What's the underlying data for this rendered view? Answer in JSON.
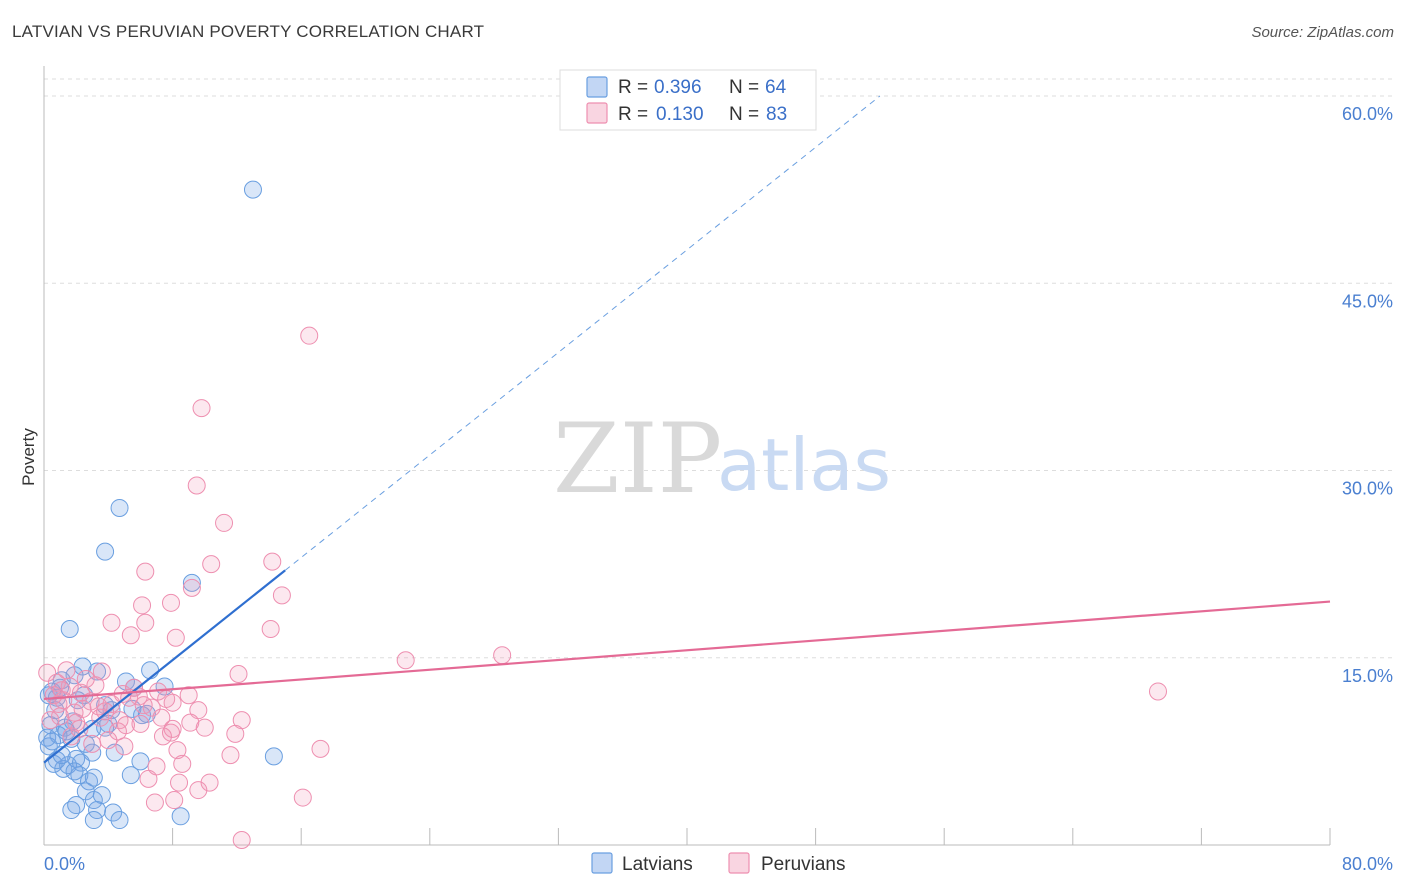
{
  "title": "LATVIAN VS PERUVIAN POVERTY CORRELATION CHART",
  "source": "Source: ZipAtlas.com",
  "watermark": {
    "zip": "ZIP",
    "atlas": "atlas"
  },
  "colors": {
    "latvians": "#6a9fe0",
    "latvians_fill": "rgba(120,165,230,0.28)",
    "latvians_line": "#2f6fd0",
    "peruvians": "#ee8fb0",
    "peruvians_fill": "rgba(240,150,180,0.22)",
    "peruvians_line": "#e46a95",
    "tick_text": "#4a7fd0",
    "grid": "#dddddd"
  },
  "legend": {
    "r_label": "R = ",
    "n_label": "N = ",
    "rows": [
      {
        "series": "latvians",
        "r": "0.396",
        "n": "64"
      },
      {
        "series": "peruvians",
        "r": "0.130",
        "n": "83"
      }
    ]
  },
  "bottom_legend": [
    {
      "series": "latvians",
      "label": "Latvians"
    },
    {
      "series": "peruvians",
      "label": "Peruvians"
    }
  ],
  "chart_data": {
    "type": "scatter",
    "title": "LATVIAN VS PERUVIAN POVERTY CORRELATION CHART",
    "xlabel": "",
    "ylabel": "Poverty",
    "xlim": [
      0,
      80
    ],
    "ylim": [
      0,
      60
    ],
    "x_tick_labels": [
      "0.0%",
      "80.0%"
    ],
    "y_ticks": [
      15,
      30,
      45,
      60
    ],
    "y_tick_labels": [
      "15.0%",
      "30.0%",
      "45.0%",
      "60.0%"
    ],
    "grid": "horizontal dashed",
    "legend_placement": "top-center",
    "series": [
      {
        "name": "Latvians",
        "key": "latvians",
        "r": 0.396,
        "n": 64,
        "trend": {
          "x0": 0,
          "y0": 6.6,
          "x1": 15,
          "y1": 22.0,
          "dashed_to_x": 52,
          "dashed_to_y": 60
        },
        "points": [
          [
            13,
            52.5
          ],
          [
            4.7,
            27
          ],
          [
            3.8,
            23.5
          ],
          [
            9.2,
            21
          ],
          [
            1.6,
            17.3
          ],
          [
            2.4,
            14.3
          ],
          [
            1.9,
            13.6
          ],
          [
            3.3,
            13.9
          ],
          [
            6.6,
            14.0
          ],
          [
            1.1,
            13.2
          ],
          [
            5.1,
            13.1
          ],
          [
            5.6,
            12.6
          ],
          [
            7.5,
            12.7
          ],
          [
            0.5,
            12.3
          ],
          [
            0.8,
            11.8
          ],
          [
            2.5,
            12.0
          ],
          [
            3.8,
            11.2
          ],
          [
            6.1,
            10.4
          ],
          [
            4.2,
            10.8
          ],
          [
            0.4,
            9.6
          ],
          [
            1.3,
            9.4
          ],
          [
            1.8,
            9.9
          ],
          [
            3.0,
            9.3
          ],
          [
            3.8,
            9.4
          ],
          [
            0.2,
            8.6
          ],
          [
            0.9,
            8.8
          ],
          [
            1.7,
            8.5
          ],
          [
            0.3,
            7.9
          ],
          [
            2.0,
            6.9
          ],
          [
            3.0,
            7.4
          ],
          [
            4.4,
            7.4
          ],
          [
            0.6,
            6.5
          ],
          [
            1.2,
            6.1
          ],
          [
            1.5,
            6.4
          ],
          [
            2.3,
            6.6
          ],
          [
            6.0,
            6.7
          ],
          [
            14.3,
            7.1
          ],
          [
            2.2,
            5.6
          ],
          [
            2.8,
            5.1
          ],
          [
            3.1,
            5.4
          ],
          [
            5.4,
            5.6
          ],
          [
            2.6,
            4.3
          ],
          [
            3.1,
            3.6
          ],
          [
            1.7,
            2.8
          ],
          [
            2.0,
            3.2
          ],
          [
            3.3,
            2.8
          ],
          [
            4.3,
            2.6
          ],
          [
            3.1,
            2.0
          ],
          [
            4.7,
            2.0
          ],
          [
            8.5,
            2.3
          ],
          [
            0.7,
            10.8
          ],
          [
            1.0,
            12.6
          ],
          [
            1.4,
            9.1
          ],
          [
            2.6,
            8.1
          ],
          [
            4.0,
            9.7
          ],
          [
            0.3,
            12.0
          ],
          [
            2.1,
            11.6
          ],
          [
            5.5,
            10.9
          ],
          [
            0.8,
            6.8
          ],
          [
            1.9,
            5.9
          ],
          [
            3.6,
            4.0
          ],
          [
            0.5,
            8.3
          ],
          [
            6.4,
            10.5
          ],
          [
            1.1,
            7.2
          ]
        ]
      },
      {
        "name": "Peruvians",
        "key": "peruvians",
        "r": 0.13,
        "n": 83,
        "trend": {
          "x0": 0,
          "y0": 11.7,
          "x1": 80,
          "y1": 19.5
        },
        "points": [
          [
            16.5,
            40.8
          ],
          [
            9.8,
            35.0
          ],
          [
            9.5,
            28.8
          ],
          [
            11.2,
            25.8
          ],
          [
            10.4,
            22.5
          ],
          [
            14.2,
            22.7
          ],
          [
            6.3,
            21.9
          ],
          [
            9.2,
            20.6
          ],
          [
            14.8,
            20.0
          ],
          [
            7.9,
            19.4
          ],
          [
            6.1,
            19.2
          ],
          [
            4.2,
            17.8
          ],
          [
            6.3,
            17.8
          ],
          [
            14.1,
            17.3
          ],
          [
            5.4,
            16.8
          ],
          [
            8.2,
            16.6
          ],
          [
            22.5,
            14.8
          ],
          [
            28.5,
            15.2
          ],
          [
            69.3,
            12.3
          ],
          [
            12.1,
            13.7
          ],
          [
            3.6,
            13.9
          ],
          [
            0.8,
            13.0
          ],
          [
            1.6,
            12.7
          ],
          [
            2.3,
            12.2
          ],
          [
            4.9,
            12.1
          ],
          [
            5.9,
            11.9
          ],
          [
            7.1,
            12.3
          ],
          [
            8.0,
            11.4
          ],
          [
            0.9,
            11.3
          ],
          [
            1.2,
            11.6
          ],
          [
            2.9,
            11.5
          ],
          [
            4.2,
            11.3
          ],
          [
            5.3,
            11.8
          ],
          [
            6.7,
            11.0
          ],
          [
            9.6,
            10.8
          ],
          [
            1.0,
            10.3
          ],
          [
            1.9,
            10.6
          ],
          [
            2.4,
            10.9
          ],
          [
            3.5,
            10.2
          ],
          [
            4.7,
            10.0
          ],
          [
            7.3,
            10.2
          ],
          [
            12.3,
            10.0
          ],
          [
            9.1,
            9.8
          ],
          [
            2.2,
            9.3
          ],
          [
            4.6,
            9.1
          ],
          [
            5.1,
            9.6
          ],
          [
            7.9,
            9.0
          ],
          [
            8.0,
            9.3
          ],
          [
            11.9,
            8.9
          ],
          [
            3.0,
            8.1
          ],
          [
            7.4,
            8.7
          ],
          [
            8.3,
            7.6
          ],
          [
            11.6,
            7.2
          ],
          [
            17.2,
            7.7
          ],
          [
            7.0,
            6.3
          ],
          [
            8.6,
            6.5
          ],
          [
            6.5,
            5.3
          ],
          [
            8.4,
            5.0
          ],
          [
            10.3,
            5.0
          ],
          [
            9.6,
            4.4
          ],
          [
            6.9,
            3.4
          ],
          [
            8.1,
            3.6
          ],
          [
            16.1,
            3.8
          ],
          [
            12.3,
            0.4
          ],
          [
            0.2,
            13.8
          ],
          [
            1.4,
            14.0
          ],
          [
            0.6,
            12.0
          ],
          [
            3.2,
            12.8
          ],
          [
            6.2,
            11.2
          ],
          [
            2.0,
            9.8
          ],
          [
            3.8,
            10.7
          ],
          [
            5.6,
            12.6
          ],
          [
            7.6,
            11.7
          ],
          [
            1.7,
            8.7
          ],
          [
            4.0,
            8.4
          ],
          [
            9.0,
            12.0
          ],
          [
            10.0,
            9.4
          ],
          [
            2.6,
            13.3
          ],
          [
            5.0,
            7.9
          ],
          [
            1.1,
            12.4
          ],
          [
            3.4,
            11.1
          ],
          [
            6.0,
            9.7
          ],
          [
            0.4,
            10.0
          ]
        ]
      }
    ]
  }
}
